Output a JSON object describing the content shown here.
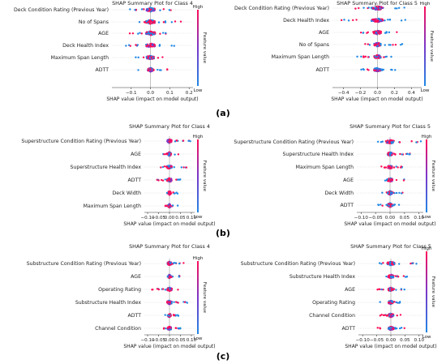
{
  "panel_labels": [
    "(a)",
    "(b)",
    "(c)"
  ],
  "colorbar": {
    "high": "High",
    "low": "Low",
    "title": "Feature value",
    "color_low": "#1e88e5",
    "color_high": "#ff0d57"
  },
  "chart_data": [
    {
      "type": "scatter",
      "title": "SHAP Summary Plot for Class 4",
      "xlabel": "SHAP value (impact on model output)",
      "features": [
        "Deck Condition Rating (Previous Year)",
        "No of Spans",
        "AGE",
        "Deck Health Index",
        "Maximum Span Length",
        "ADTT"
      ],
      "xticks": [
        -0.1,
        0.0,
        0.1,
        0.2
      ],
      "tick_labels": [
        "−0.1",
        "0.0",
        "0.1",
        "0.2"
      ],
      "xlim": [
        -0.2,
        0.22
      ],
      "spread": [
        [
          -0.12,
          0.13
        ],
        [
          -0.1,
          0.17
        ],
        [
          -0.11,
          0.17
        ],
        [
          -0.13,
          0.14
        ],
        [
          -0.08,
          0.13
        ],
        [
          -0.07,
          0.09
        ]
      ]
    },
    {
      "type": "scatter",
      "title": "SHAP Summary Plot for Class 5",
      "xlabel": "SHAP value (impact on model output)",
      "features": [
        "Deck Condition Rating (Previous Year)",
        "Deck Health Index",
        "AGE",
        "No of Spans",
        "Maximum Span Length",
        "ADTT"
      ],
      "xticks": [
        -0.4,
        -0.2,
        0.0,
        0.2,
        0.4
      ],
      "tick_labels": [
        "−0.4",
        "−0.2",
        "0.0",
        "0.2",
        "0.4"
      ],
      "xlim": [
        -0.53,
        0.52
      ],
      "spread": [
        [
          -0.3,
          0.5
        ],
        [
          -0.45,
          0.35
        ],
        [
          -0.2,
          0.3
        ],
        [
          -0.15,
          0.3
        ],
        [
          -0.25,
          0.2
        ],
        [
          -0.2,
          0.28
        ]
      ]
    },
    {
      "type": "scatter",
      "title": "SHAP Summary Plot for Class 4",
      "xlabel": "SHAP value (impact on model output)",
      "features": [
        "Superstructure Condition Rating (Previous Year)",
        "AGE",
        "Superstructure Health Index",
        "ADTT",
        "Deck Width",
        "Maximum Span Length"
      ],
      "xticks": [
        -0.1,
        -0.05,
        0.0,
        0.05,
        0.1
      ],
      "tick_labels": [
        "−0.10",
        "−0.05",
        "0.00",
        "0.05",
        "0.10"
      ],
      "xlim": [
        -0.115,
        0.115
      ],
      "spread": [
        [
          -0.01,
          0.1
        ],
        [
          -0.03,
          0.06
        ],
        [
          -0.04,
          0.09
        ],
        [
          -0.07,
          0.05
        ],
        [
          -0.02,
          0.04
        ],
        [
          -0.02,
          0.04
        ]
      ]
    },
    {
      "type": "scatter",
      "title": "SHAP Summary Plot for Class 5",
      "xlabel": "SHAP value (impact on model output)",
      "features": [
        "Superstructure Condition Rating (Previous Year)",
        "Superstructure Health Index",
        "Maximum Span Length",
        "AGE",
        "Deck Width",
        "ADTT"
      ],
      "xticks": [
        -0.1,
        -0.05,
        0.0,
        0.05,
        0.1
      ],
      "tick_labels": [
        "−0.10",
        "−0.05",
        "0.00",
        "0.05",
        "0.10"
      ],
      "xlim": [
        -0.115,
        0.115
      ],
      "spread": [
        [
          -0.05,
          0.11
        ],
        [
          -0.02,
          0.07
        ],
        [
          -0.03,
          0.05
        ],
        [
          -0.04,
          0.06
        ],
        [
          -0.03,
          0.05
        ],
        [
          -0.05,
          0.04
        ]
      ]
    },
    {
      "type": "scatter",
      "title": "SHAP Summary Plot for Class 4",
      "xlabel": "SHAP value (impact on model output)",
      "features": [
        "Substructure Condition Rating (Previous Year)",
        "AGE",
        "Operating Rating",
        "Substructure Health Index",
        "ADTT",
        "Channel Condition"
      ],
      "xticks": [
        -0.1,
        -0.05,
        0.0,
        0.05,
        0.1
      ],
      "tick_labels": [
        "−0.10",
        "−0.05",
        "0.00",
        "0.05",
        "0.10"
      ],
      "xlim": [
        -0.115,
        0.115
      ],
      "spread": [
        [
          -0.01,
          0.09
        ],
        [
          -0.01,
          0.05
        ],
        [
          -0.08,
          0.04
        ],
        [
          -0.03,
          0.09
        ],
        [
          -0.02,
          0.05
        ],
        [
          -0.03,
          0.06
        ]
      ]
    },
    {
      "type": "scatter",
      "title": "SHAP Summary Plot for Class 5",
      "xlabel": "SHAP value (impact on model output)",
      "features": [
        "Substructure Condition Rating (Previous Year)",
        "Substructure Health Index",
        "AGE",
        "Operating Rating",
        "Channel Condition",
        "ADTT"
      ],
      "xticks": [
        -0.1,
        -0.05,
        0.0,
        0.05,
        0.1
      ],
      "tick_labels": [
        "−0.10",
        "−0.05",
        "0.00",
        "0.05",
        "0.10"
      ],
      "xlim": [
        -0.115,
        0.115
      ],
      "spread": [
        [
          -0.05,
          0.1
        ],
        [
          -0.04,
          0.07
        ],
        [
          -0.05,
          0.05
        ],
        [
          -0.04,
          0.05
        ],
        [
          -0.04,
          0.06
        ],
        [
          -0.05,
          0.06
        ]
      ]
    }
  ]
}
